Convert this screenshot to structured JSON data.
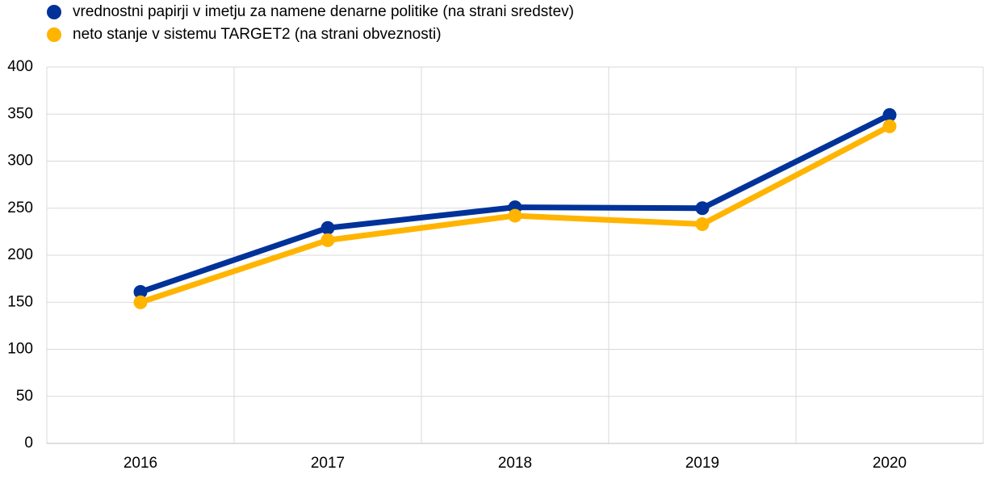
{
  "chart_data": {
    "type": "line",
    "categories": [
      "2016",
      "2017",
      "2018",
      "2019",
      "2020"
    ],
    "series": [
      {
        "name": "vrednostni papirji v imetju za namene denarne politike (na strani sredstev)",
        "color": "#003299",
        "values": [
          161,
          229,
          251,
          250,
          349
        ]
      },
      {
        "name": "neto stanje v sistemu TARGET2 (na strani obveznosti)",
        "color": "#ffb400",
        "values": [
          150,
          216,
          242,
          233,
          337
        ]
      }
    ],
    "ylim": [
      0,
      400
    ],
    "yticks": [
      0,
      50,
      100,
      150,
      200,
      250,
      300,
      350,
      400
    ],
    "grid": true
  }
}
